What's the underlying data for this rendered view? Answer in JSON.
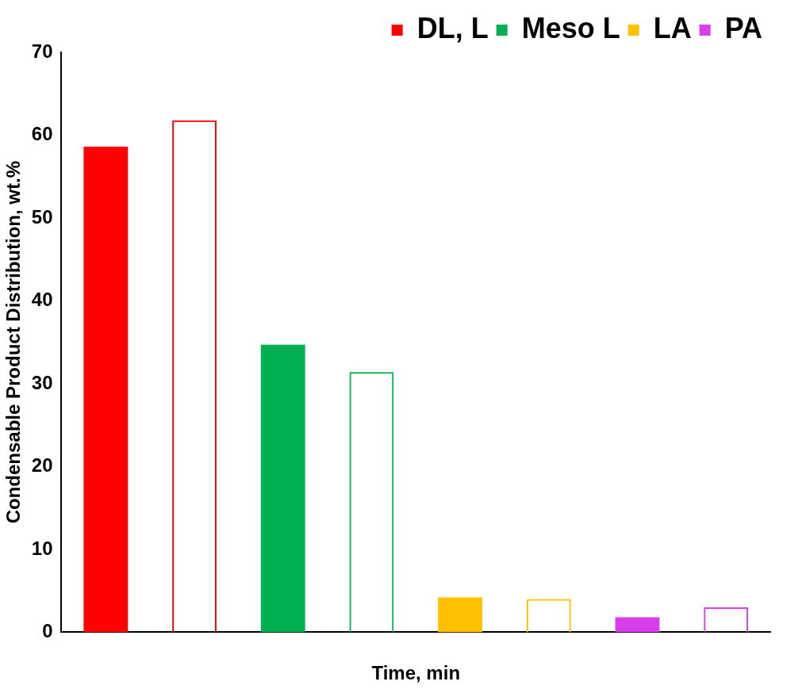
{
  "chart_data": {
    "type": "bar",
    "xlabel": "Time, min",
    "ylabel": "Condensable Product Distribution, wt.%",
    "categories": [
      null,
      null,
      null,
      null
    ],
    "series": [
      {
        "name": "DL, L",
        "color": "#ff0000",
        "values": [
          58.6,
          null,
          null,
          null
        ]
      },
      {
        "color": "#ff0000",
        "values": [
          61.8,
          null,
          null,
          null
        ]
      },
      {
        "name": "Meso L",
        "color": "#00b050",
        "values": [
          null,
          34.7,
          null,
          null
        ]
      },
      {
        "color": "#00b050",
        "values": [
          null,
          31.4,
          null,
          null
        ]
      },
      {
        "name": "LA",
        "color": "#ffc000",
        "values": [
          null,
          null,
          4.2,
          null
        ]
      },
      {
        "color": "#ffc000",
        "values": [
          null,
          null,
          4.0,
          null
        ]
      },
      {
        "name": "PA",
        "color": "#d93fe8",
        "values": [
          null,
          null,
          null,
          1.8
        ]
      },
      {
        "color": "#d93fe8",
        "values": [
          null,
          null,
          null,
          3.0
        ]
      }
    ],
    "ylim": [
      0,
      70
    ],
    "yticks": [
      0,
      10,
      20,
      30,
      40,
      50,
      60,
      70
    ],
    "grid": false,
    "legend": "top right"
  }
}
